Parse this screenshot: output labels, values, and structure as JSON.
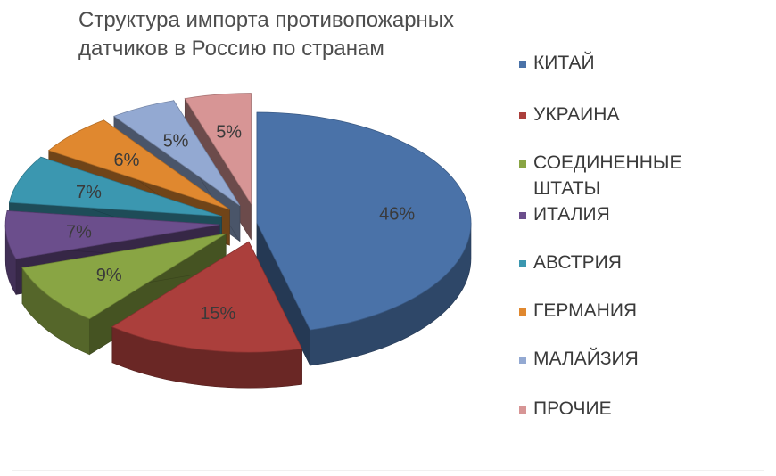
{
  "chart_data": {
    "type": "pie",
    "title_lines": [
      "Структура импорта противопожарных",
      "датчиков в Россию по странам"
    ],
    "slices": [
      {
        "label": "КИТАЙ",
        "value": 46,
        "value_label": "46%",
        "color": "#4a72a8",
        "exploded": false
      },
      {
        "label": "УКРАИНА",
        "value": 15,
        "value_label": "15%",
        "color": "#ab3f3c",
        "exploded": true
      },
      {
        "label": "СОЕДИНЕННЫЕ ШТАТЫ",
        "value": 9,
        "value_label": "9%",
        "color": "#89a544",
        "exploded": true
      },
      {
        "label": "ИТАЛИЯ",
        "value": 7,
        "value_label": "7%",
        "color": "#6b4e8c",
        "exploded": true
      },
      {
        "label": "АВСТРИЯ",
        "value": 7,
        "value_label": "7%",
        "color": "#3b97b0",
        "exploded": true
      },
      {
        "label": "ГЕРМАНИЯ",
        "value": 6,
        "value_label": "6%",
        "color": "#e0882f",
        "exploded": true
      },
      {
        "label": "МАЛАЙЗИЯ",
        "value": 5,
        "value_label": "5%",
        "color": "#93a9d2",
        "exploded": true
      },
      {
        "label": "ПРОЧИЕ",
        "value": 5,
        "value_label": "5%",
        "color": "#d79595",
        "exploded": true
      }
    ],
    "legend": {
      "position": "right",
      "items": [
        "КИТАЙ",
        "УКРАИНА",
        "СОЕДИНЕННЫЕ\nШТАТЫ",
        "ИТАЛИЯ",
        "АВСТРИЯ",
        "ГЕРМАНИЯ",
        "МАЛАЙЗИЯ",
        "ПРОЧИЕ"
      ]
    },
    "style": "3d-exploded"
  }
}
